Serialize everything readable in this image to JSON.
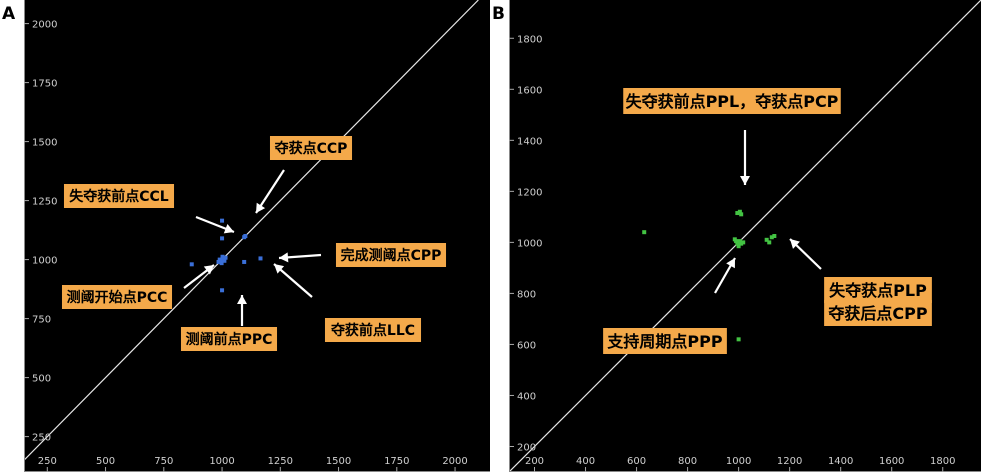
{
  "panels": {
    "a": {
      "letter": "A"
    },
    "b": {
      "letter": "B"
    }
  },
  "colors": {
    "background": "#000000",
    "diagonal": "#e6e6e6",
    "callout_bg": "#f4a94a",
    "arrow": "#ffffff",
    "points_a": "#3a6fd8",
    "points_b": "#43c343",
    "tick_text": "#cfcfcf"
  },
  "chart_data": [
    {
      "type": "scatter",
      "panel": "A",
      "title": "",
      "xlabel": "",
      "ylabel": "",
      "xlim": [
        150,
        2150
      ],
      "ylim": [
        100,
        2100
      ],
      "x_ticks": [
        250,
        500,
        750,
        1000,
        1250,
        1500,
        1750,
        2000
      ],
      "y_ticks": [
        250,
        500,
        750,
        1000,
        1250,
        1500,
        1750,
        2000
      ],
      "diagonal": true,
      "grid": false,
      "points": [
        {
          "x": 1000,
          "y": 1000
        },
        {
          "x": 995,
          "y": 995
        },
        {
          "x": 1005,
          "y": 1005
        },
        {
          "x": 990,
          "y": 1000
        },
        {
          "x": 1010,
          "y": 995
        },
        {
          "x": 998,
          "y": 985
        },
        {
          "x": 1002,
          "y": 1012
        },
        {
          "x": 985,
          "y": 990
        },
        {
          "x": 1015,
          "y": 1008
        },
        {
          "x": 1000,
          "y": 1165
        },
        {
          "x": 1000,
          "y": 1090
        },
        {
          "x": 1100,
          "y": 1100
        },
        {
          "x": 1095,
          "y": 1095
        },
        {
          "x": 1165,
          "y": 1005
        },
        {
          "x": 1095,
          "y": 990
        },
        {
          "x": 870,
          "y": 980
        },
        {
          "x": 1000,
          "y": 870
        }
      ],
      "annotations": [
        {
          "text": "夺获点CCP",
          "x": 1080,
          "y": 1465
        },
        {
          "text": "失夺获前点CCL",
          "x": 545,
          "y": 1280
        },
        {
          "text": "完成测阈点CPP",
          "x": 1595,
          "y": 1000
        },
        {
          "text": "测阈开始点PCC",
          "x": 480,
          "y": 800
        },
        {
          "text": "测阈前点PPC",
          "x": 1010,
          "y": 600
        },
        {
          "text": "夺获前点LLC",
          "x": 1635,
          "y": 630
        }
      ]
    },
    {
      "type": "scatter",
      "panel": "B",
      "title": "",
      "xlabel": "",
      "ylabel": "",
      "xlim": [
        100,
        1950
      ],
      "ylim": [
        100,
        1950
      ],
      "x_ticks": [
        200,
        400,
        600,
        800,
        1000,
        1200,
        1400,
        1600,
        1800
      ],
      "y_ticks": [
        200,
        400,
        600,
        800,
        1000,
        1200,
        1400,
        1600,
        1800
      ],
      "diagonal": true,
      "grid": false,
      "points": [
        {
          "x": 1000,
          "y": 1000
        },
        {
          "x": 995,
          "y": 995
        },
        {
          "x": 1005,
          "y": 1005
        },
        {
          "x": 990,
          "y": 1005
        },
        {
          "x": 1010,
          "y": 995
        },
        {
          "x": 1000,
          "y": 985
        },
        {
          "x": 1018,
          "y": 1000
        },
        {
          "x": 985,
          "y": 1012
        },
        {
          "x": 1005,
          "y": 1120
        },
        {
          "x": 995,
          "y": 1115
        },
        {
          "x": 1010,
          "y": 1110
        },
        {
          "x": 1110,
          "y": 1010
        },
        {
          "x": 1120,
          "y": 1000
        },
        {
          "x": 1130,
          "y": 1020
        },
        {
          "x": 1140,
          "y": 1025
        },
        {
          "x": 630,
          "y": 1040
        },
        {
          "x": 1000,
          "y": 620
        }
      ],
      "annotations": [
        {
          "text": "失夺获前点PPL，夺获点PCP",
          "x": 955,
          "y": 1625
        },
        {
          "text": "失夺获点PLP",
          "x": 1690,
          "y": 750
        },
        {
          "text": "夺获后点CPP",
          "x": 1690,
          "y": 665
        },
        {
          "text": "支持周期点PPP",
          "x": 690,
          "y": 550
        }
      ]
    }
  ]
}
